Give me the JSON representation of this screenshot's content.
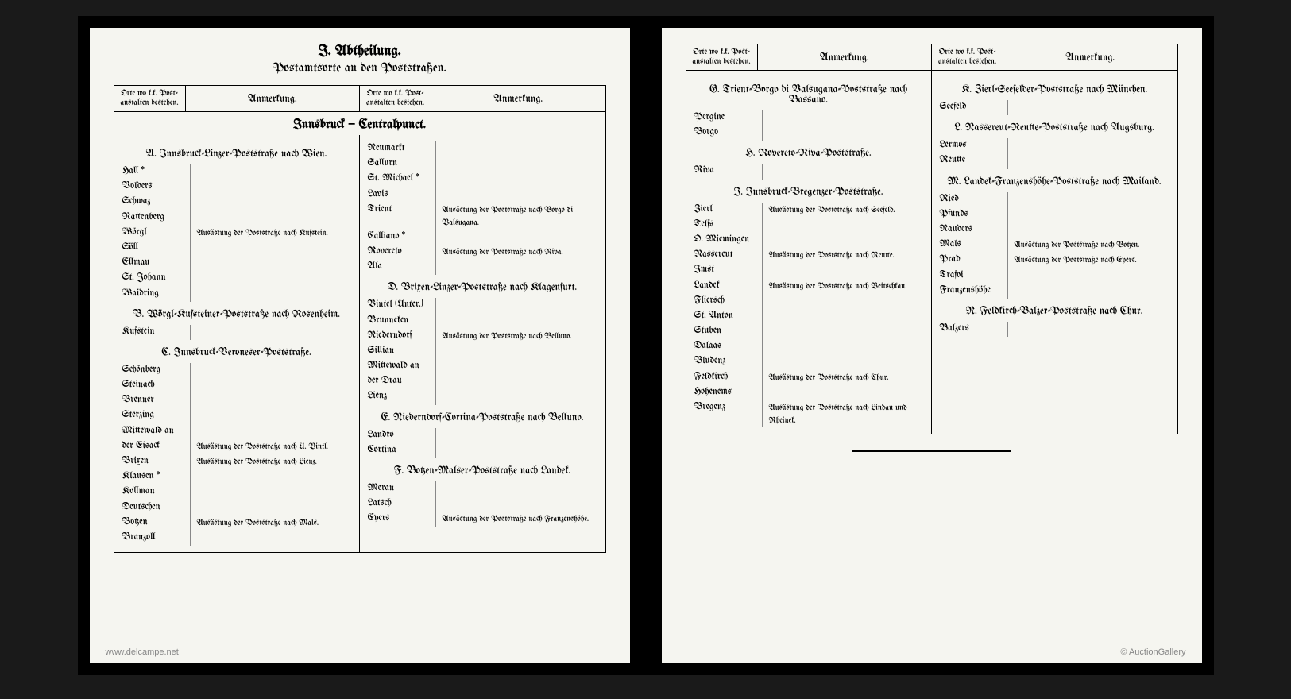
{
  "page_left": {
    "title": "I. Abtheilung.",
    "subtitle": "Postamtsorte an den Poststraßen.",
    "headers": {
      "col1": "Orte wo k.k. Post-anstalten bestehen.",
      "col2": "Anmerkung.",
      "col3": "Orte wo k.k. Post-anstalten bestehen.",
      "col4": "Anmerkung."
    },
    "central": "Innsbruck — Centralpunct.",
    "sections_left": [
      {
        "heading": "A. Innsbruck-Linzer-Poststraße nach Wien.",
        "entries": [
          {
            "place": "Hall *",
            "note": ""
          },
          {
            "place": "Volders",
            "note": ""
          },
          {
            "place": "Schwaz",
            "note": ""
          },
          {
            "place": "Rattenberg",
            "note": ""
          },
          {
            "place": "Wörgl",
            "note": "Ausästung der Poststraße nach Kufstein."
          },
          {
            "place": "Söll",
            "note": ""
          },
          {
            "place": "Ellmau",
            "note": ""
          },
          {
            "place": "St. Johann",
            "note": ""
          },
          {
            "place": "Waidring",
            "note": ""
          }
        ]
      },
      {
        "heading": "B. Wörgl-Kufsteiner-Poststraße nach Rosenheim.",
        "entries": [
          {
            "place": "Kufstein",
            "note": ""
          }
        ]
      },
      {
        "heading": "C. Innsbruck-Veroneser-Poststraße.",
        "entries": [
          {
            "place": "Schönberg",
            "note": ""
          },
          {
            "place": "Steinach",
            "note": ""
          },
          {
            "place": "Brenner",
            "note": ""
          },
          {
            "place": "Sterzing",
            "note": ""
          },
          {
            "place": "Mittewald an",
            "note": ""
          },
          {
            "place": "  der Eisack",
            "note": "Ausästung der Poststraße nach U. Vintl."
          },
          {
            "place": "Brixen",
            "note": "Ausästung der Poststraße nach Lienz."
          },
          {
            "place": "Klausen *",
            "note": ""
          },
          {
            "place": "Kollman",
            "note": ""
          },
          {
            "place": "Deutschen",
            "note": ""
          },
          {
            "place": "Botzen",
            "note": "Ausästung der Poststraße nach Mals."
          },
          {
            "place": "Branzoll",
            "note": ""
          }
        ]
      }
    ],
    "sections_right": [
      {
        "heading": "",
        "entries": [
          {
            "place": "Neumarkt",
            "note": ""
          },
          {
            "place": "Sallurn",
            "note": ""
          },
          {
            "place": "St. Michael *",
            "note": ""
          },
          {
            "place": "Lavis",
            "note": ""
          },
          {
            "place": "Trient",
            "note": "Ausästung der Poststraße nach Borgo di Valsugana."
          },
          {
            "place": "Calliano *",
            "note": ""
          },
          {
            "place": "Rovereto",
            "note": "Ausästung der Poststraße nach Riva."
          },
          {
            "place": "Ala",
            "note": ""
          }
        ]
      },
      {
        "heading": "D. Brixen-Linzer-Poststraße nach Klagenfurt.",
        "entries": [
          {
            "place": "Vintel (Unter.)",
            "note": ""
          },
          {
            "place": "Brunneken",
            "note": ""
          },
          {
            "place": "Niederndorf",
            "note": "Ausästung der Poststraße nach Belluno."
          },
          {
            "place": "Sillian",
            "note": ""
          },
          {
            "place": "Mittewald an",
            "note": ""
          },
          {
            "place": "  der Drau",
            "note": ""
          },
          {
            "place": "Lienz",
            "note": ""
          }
        ]
      },
      {
        "heading": "E. Niederndorf-Cortina-Poststraße nach Belluno.",
        "entries": [
          {
            "place": "Landro",
            "note": ""
          },
          {
            "place": "Cortina",
            "note": ""
          }
        ]
      },
      {
        "heading": "F. Botzen-Malser-Poststraße nach Landek.",
        "entries": [
          {
            "place": "Meran",
            "note": ""
          },
          {
            "place": "Latsch",
            "note": ""
          },
          {
            "place": "Eyers",
            "note": "Ausästung der Poststraße nach Franzenshöhe."
          }
        ]
      }
    ]
  },
  "page_right": {
    "headers": {
      "col1": "Orte wo k.k. Post-anstalten bestehen.",
      "col2": "Anmerkung.",
      "col3": "Orte wo k.k. Post-anstalten bestehen.",
      "col4": "Anmerkung."
    },
    "sections_left": [
      {
        "heading": "G. Trient-Borgo di Valsugana-Poststraße nach Bassano.",
        "entries": [
          {
            "place": "Pergine",
            "note": ""
          },
          {
            "place": "Borgo",
            "note": ""
          }
        ]
      },
      {
        "heading": "H. Rovereto-Riva-Poststraße.",
        "entries": [
          {
            "place": "Riva",
            "note": ""
          }
        ]
      },
      {
        "heading": "I. Innsbruck-Bregenzer-Poststraße.",
        "entries": [
          {
            "place": "Zierl",
            "note": "Ausästung der Poststraße nach Seefeld."
          },
          {
            "place": "Telfs",
            "note": ""
          },
          {
            "place": "O. Miemingen",
            "note": ""
          },
          {
            "place": "Nassereut",
            "note": "Ausästung der Poststraße nach Reutte."
          },
          {
            "place": "Imst",
            "note": ""
          },
          {
            "place": "Landek",
            "note": "Ausästung der Poststraße nach Veitschkau."
          },
          {
            "place": "Fliersch",
            "note": ""
          },
          {
            "place": "St. Anton",
            "note": ""
          },
          {
            "place": "Stuben",
            "note": ""
          },
          {
            "place": "Dalaas",
            "note": ""
          },
          {
            "place": "Bludenz",
            "note": ""
          },
          {
            "place": "Feldkirch",
            "note": "Ausästung der Poststraße nach Chur."
          },
          {
            "place": "Hohenems",
            "note": ""
          },
          {
            "place": "Bregenz",
            "note": "Ausästung der Poststraße nach Lindau und Rheinek."
          }
        ]
      }
    ],
    "sections_right": [
      {
        "heading": "K. Zierl-Seefelder-Poststraße nach München.",
        "entries": [
          {
            "place": "Seefeld",
            "note": ""
          }
        ]
      },
      {
        "heading": "L. Nassereut-Reutte-Poststraße nach Augsburg.",
        "entries": [
          {
            "place": "Lermos",
            "note": ""
          },
          {
            "place": "Reutte",
            "note": ""
          }
        ]
      },
      {
        "heading": "M. Landek-Franzenshöhe-Poststraße nach Mailand.",
        "entries": [
          {
            "place": "Ried",
            "note": ""
          },
          {
            "place": "Pfunds",
            "note": ""
          },
          {
            "place": "Nauders",
            "note": ""
          },
          {
            "place": "Mals",
            "note": "Ausästung der Poststraße nach Botzen."
          },
          {
            "place": "Prad",
            "note": "Ausästung der Poststraße nach Eyers."
          },
          {
            "place": "Trafoi",
            "note": ""
          },
          {
            "place": "Franzenshöhe",
            "note": ""
          }
        ]
      },
      {
        "heading": "N. Feldkirch-Balzer-Poststraße nach Chur.",
        "entries": [
          {
            "place": "Balzers",
            "note": ""
          }
        ]
      }
    ]
  },
  "watermarks": {
    "left": "www.delcampe.net",
    "right": "© AuctionGallery"
  }
}
